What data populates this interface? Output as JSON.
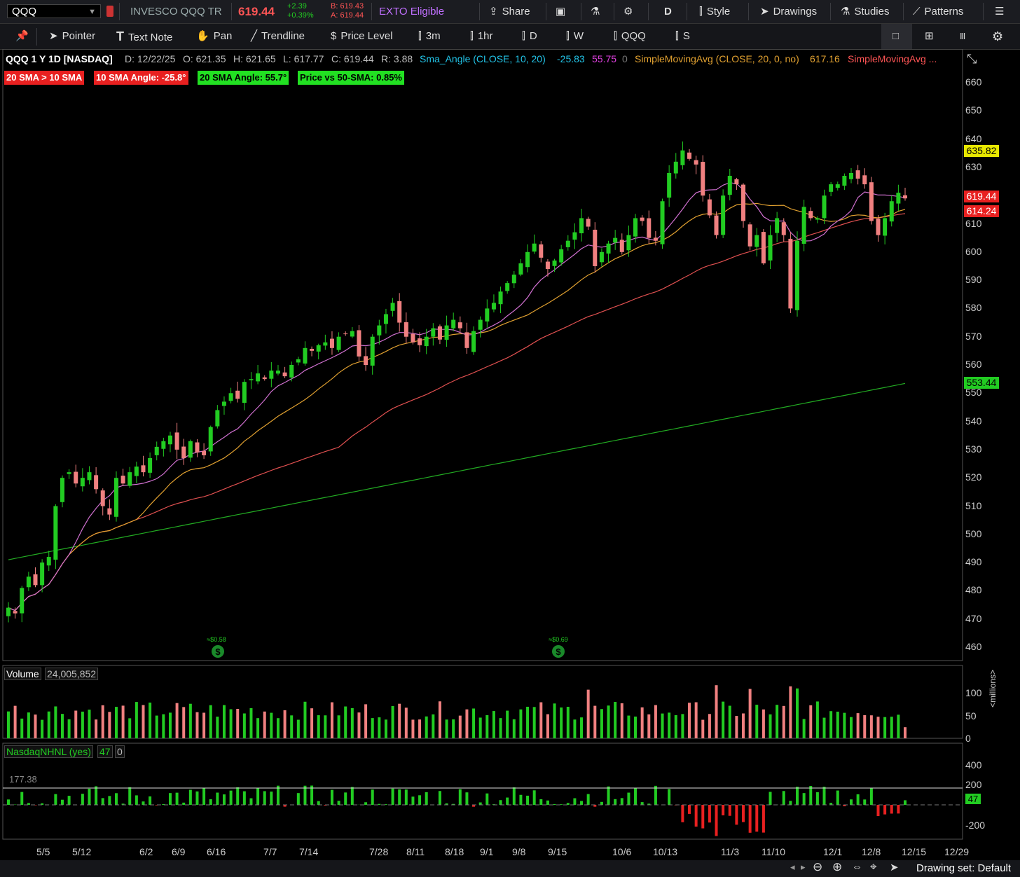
{
  "top_bar": {
    "symbol": "QQQ",
    "description": "INVESCO QQQ TR",
    "last_price": "619.44",
    "change": "+2.39",
    "change_pct": "+0.39%",
    "bid": "B: 619.43",
    "ask": "A: 619.44",
    "exto": "EXTO Eligible",
    "share": "Share",
    "period_btn": "D",
    "style": "Style",
    "drawings": "Drawings",
    "studies": "Studies",
    "patterns": "Patterns"
  },
  "toolbar": {
    "pointer": "Pointer",
    "text_note": "Text Note",
    "pan": "Pan",
    "trendline": "Trendline",
    "price_level": "Price Level",
    "intervals": [
      "3m",
      "1hr",
      "D",
      "W",
      "QQQ",
      "S"
    ]
  },
  "header": {
    "title": "QQQ 1 Y 1D [NASDAQ]",
    "date": "D: 12/22/25",
    "open": "O: 621.35",
    "high": "H: 621.65",
    "low": "L: 617.77",
    "close": "C: 619.44",
    "range": "R: 3.88",
    "study1": "Sma_Angle (CLOSE, 10, 20)",
    "study1_v1": "-25.83",
    "study1_v2": "55.75",
    "study1_v3": "0",
    "study2": "SimpleMovingAvg (CLOSE, 20, 0, no)",
    "study2_v": "617.16",
    "study3": "SimpleMovingAvg ..."
  },
  "labels": {
    "l1": "20 SMA > 10 SMA",
    "l2": "10 SMA Angle: -25.8°",
    "l3": "20 SMA Angle: 55.7°",
    "l4": "Price vs 50-SMA: 0.85%"
  },
  "price_tags": {
    "t1": "635.82",
    "t2": "619.44",
    "t3": "614.24",
    "t4": "553.44"
  },
  "dividends": [
    "≈$0.58",
    "≈$0.69"
  ],
  "volume_panel": {
    "label": "Volume",
    "value": "24,005,852",
    "unit": "<millions>",
    "ticks": [
      "100",
      "50",
      "0"
    ]
  },
  "nhnl_panel": {
    "label": "NasdaqNHNL (yes)",
    "value": "47",
    "zero": "0",
    "level": "177.38",
    "ticks": [
      "400",
      "200",
      "0",
      "-200"
    ],
    "tag": "47"
  },
  "bottom": {
    "drawing_set": "Drawing set: Default"
  },
  "colors": {
    "up": "#22cc22",
    "down": "#f08080",
    "sma10": "#d070d0",
    "sma20": "#e0a030",
    "sma50": "#e05050",
    "sma200": "#22aa22"
  },
  "chart_data": {
    "type": "candlestick",
    "y_axis_ticks": [
      460,
      470,
      480,
      490,
      500,
      510,
      520,
      530,
      540,
      550,
      560,
      570,
      580,
      590,
      600,
      610,
      620,
      630,
      640,
      650,
      660
    ],
    "ylim": [
      455,
      665
    ],
    "x_tick_labels": [
      "5/5",
      "5/12",
      "6/2",
      "6/9",
      "6/16",
      "7/7",
      "7/14",
      "7/28",
      "8/11",
      "8/18",
      "9/1",
      "9/8",
      "9/15",
      "10/6",
      "10/13",
      "11/3",
      "11/10",
      "12/1",
      "12/8",
      "12/15",
      "12/29"
    ],
    "closes": [
      474,
      472,
      481,
      485,
      482,
      490,
      492,
      510,
      520,
      522,
      518,
      520,
      522,
      516,
      510,
      507,
      520,
      518,
      522,
      524,
      522,
      527,
      531,
      533,
      535,
      530,
      527,
      533,
      529,
      528,
      538,
      544,
      547,
      550,
      548,
      554,
      555,
      557,
      555,
      558,
      558,
      556,
      560,
      562,
      566,
      565,
      567,
      568,
      566,
      570,
      571,
      572,
      563,
      560,
      570,
      574,
      578,
      582,
      575,
      570,
      568,
      567,
      570,
      573,
      569,
      574,
      576,
      573,
      566,
      572,
      576,
      580,
      582,
      586,
      589,
      592,
      596,
      600,
      603,
      598,
      594,
      597,
      601,
      604,
      607,
      612,
      609,
      595,
      600,
      603,
      605,
      600,
      606,
      612,
      611,
      605,
      604,
      618,
      628,
      632,
      636,
      633,
      631,
      620,
      613,
      606,
      620,
      627,
      624,
      611,
      602,
      606,
      596,
      606,
      612,
      606,
      580,
      604,
      616,
      612,
      612,
      620,
      624,
      624,
      627,
      628,
      626,
      624,
      611,
      606,
      612,
      618,
      621,
      619
    ],
    "sma_lines": [
      "SMA 10",
      "SMA 20",
      "SMA 50",
      "SMA 200"
    ]
  }
}
